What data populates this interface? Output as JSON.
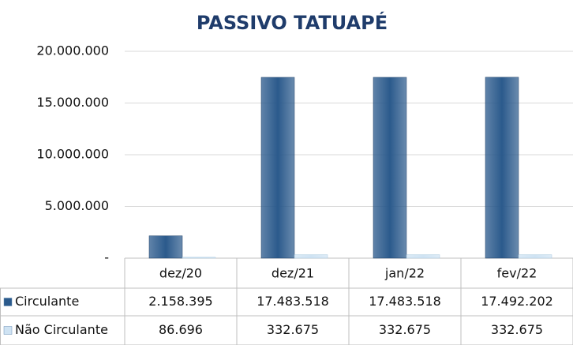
{
  "chart_data": {
    "type": "bar",
    "title": "PASSIVO TATUAPÉ",
    "categories": [
      "dez/20",
      "dez/21",
      "jan/22",
      "fev/22"
    ],
    "series": [
      {
        "name": "Circulante",
        "color": "#2b5a8c",
        "values": [
          2158395,
          17483518,
          17483518,
          17492202
        ],
        "value_labels": [
          "2.158.395",
          "17.483.518",
          "17.483.518",
          "17.492.202"
        ]
      },
      {
        "name": "Não Circulante",
        "color": "#cfe3f3",
        "values": [
          86696,
          332675,
          332675,
          332675
        ],
        "value_labels": [
          "86.696",
          "332.675",
          "332.675",
          "332.675"
        ]
      }
    ],
    "ylim": [
      0,
      20000000
    ],
    "yticks": [
      {
        "value": 0,
        "label": "-"
      },
      {
        "value": 5000000,
        "label": "5.000.000"
      },
      {
        "value": 10000000,
        "label": "10.000.000"
      },
      {
        "value": 15000000,
        "label": "15.000.000"
      },
      {
        "value": 20000000,
        "label": "20.000.000"
      }
    ],
    "grid": true
  }
}
